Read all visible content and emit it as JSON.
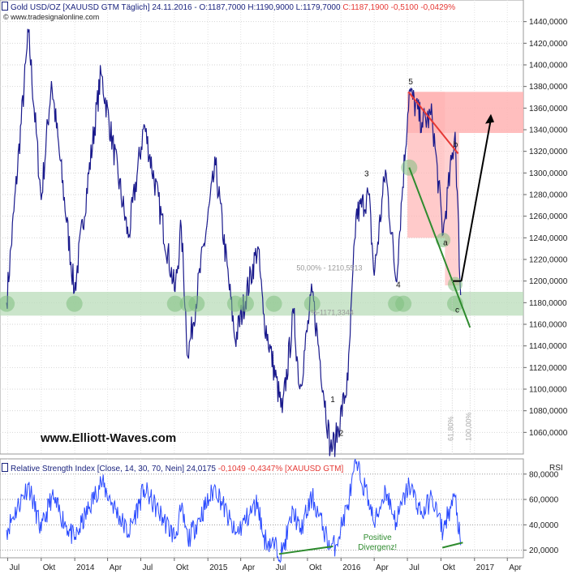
{
  "header": {
    "symbol": "Gold USD/OZ [XAUUSD GTM  Täglich]",
    "quote": "24.11.2016 - O:1187,7000 H:1190,9000 L:1179,7000",
    "change": "C:1187,1900 -0,5100 -0,0429%",
    "website": "© www.tradesignalonline.com"
  },
  "watermark": "www.Elliott-Waves.com",
  "colors": {
    "price_line": "#1a1a8c",
    "rsi_line": "#2b4bff",
    "support_zone": "#b9dcb9",
    "target_zone": "#ffb3b3",
    "trend_red": "#e53935",
    "trend_green": "#2e8b2e",
    "header_text": "#1a237e"
  },
  "chart_data": [
    {
      "type": "line",
      "ylim": [
        1040,
        1460
      ],
      "y_ticks": [
        "1440,0000",
        "1420,0000",
        "1400,0000",
        "1380,0000",
        "1360,0000",
        "1340,0000",
        "1320,0000",
        "1300,0000",
        "1280,0000",
        "1260,0000",
        "1240,0000",
        "1220,0000",
        "1200,0000",
        "1180,0000",
        "1160,0000",
        "1140,0000",
        "1120,0000",
        "1100,0000",
        "1080,0000",
        "1060,0000"
      ],
      "x_ticks": [
        "Jul",
        "Okt",
        "2014",
        "Apr",
        "Jul",
        "Okt",
        "2015",
        "Apr",
        "Jul",
        "Okt",
        "2016",
        "Apr",
        "Jul",
        "Okt",
        "2017",
        "Apr"
      ],
      "series": [
        {
          "x": [
            "2013-06-28",
            "2013-08-27",
            "2013-10-01",
            "2013-10-29",
            "2013-12-31",
            "2014-03-14",
            "2014-05-28",
            "2014-07-10",
            "2014-10-03",
            "2014-10-20",
            "2014-11-07",
            "2015-01-22",
            "2015-03-17",
            "2015-05-18",
            "2015-06-02",
            "2015-07-24",
            "2015-08-24",
            "2015-09-10",
            "2015-10-14",
            "2015-12-03",
            "2015-12-17",
            "2016-01-20",
            "2016-02-11",
            "2016-03-17",
            "2016-04-01",
            "2016-05-02",
            "2016-05-31",
            "2016-07-06",
            "2016-08-10",
            "2016-09-07",
            "2016-10-07",
            "2016-10-14",
            "2016-11-09",
            "2016-11-24"
          ],
          "values": [
            1180,
            1430,
            1275,
            1385,
            1190,
            1392,
            1240,
            1345,
            1190,
            1250,
            1130,
            1307,
            1145,
            1232,
            1170,
            1078,
            1170,
            1100,
            1190,
            1045,
            1052,
            1108,
            1260,
            1280,
            1205,
            1303,
            1200,
            1376,
            1347,
            1352,
            1243,
            1265,
            1338,
            1187
          ]
        }
      ],
      "levels": {
        "fib_50": "50,00% - 1210,5513",
        "fib_618_partial": "%-1171,3344",
        "vert_618": "61,80%",
        "vert_100": "100,00%"
      },
      "support_zone": [
        1168,
        1190
      ],
      "target_zone": [
        1337,
        1375
      ],
      "wave_labels": [
        {
          "label": "1",
          "date": "2015-12-03",
          "value": 1088
        },
        {
          "label": "2",
          "date": "2015-12-26",
          "value": 1057
        },
        {
          "label": "3",
          "date": "2016-03-05",
          "value": 1297
        },
        {
          "label": "4",
          "date": "2016-05-31",
          "value": 1194
        },
        {
          "label": "5",
          "date": "2016-07-04",
          "value": 1382
        },
        {
          "label": "a",
          "date": "2016-10-07",
          "value": 1233
        },
        {
          "label": "b",
          "date": "2016-11-04",
          "value": 1324
        },
        {
          "label": "c",
          "date": "2016-11-09",
          "value": 1171
        }
      ]
    },
    {
      "type": "line",
      "title": "Relative Strength Index [Close, 14, 30, 70, Nein]",
      "reading": "24,0175",
      "change": "-0,1049 -0,4347% [XAUUSD GTM]",
      "label": "RSI",
      "ylim": [
        14,
        92
      ],
      "y_ticks": [
        "80,0000",
        "60,0000",
        "40,0000",
        "20,0000"
      ],
      "series": [
        {
          "x": [
            "2013-06-28",
            "2013-08-27",
            "2013-10-01",
            "2013-10-29",
            "2013-12-31",
            "2014-03-14",
            "2014-05-28",
            "2014-07-10",
            "2014-10-03",
            "2014-10-20",
            "2014-11-07",
            "2015-01-22",
            "2015-03-17",
            "2015-05-18",
            "2015-06-02",
            "2015-07-24",
            "2015-08-24",
            "2015-09-10",
            "2015-10-14",
            "2015-12-03",
            "2015-12-17",
            "2016-01-20",
            "2016-02-11",
            "2016-03-17",
            "2016-04-01",
            "2016-05-02",
            "2016-05-31",
            "2016-07-06",
            "2016-08-10",
            "2016-09-07",
            "2016-10-07",
            "2016-10-14",
            "2016-11-09",
            "2016-11-24"
          ],
          "values": [
            36,
            72,
            35,
            62,
            28,
            74,
            33,
            68,
            30,
            52,
            28,
            70,
            32,
            58,
            30,
            18,
            52,
            34,
            62,
            22,
            24,
            56,
            88,
            60,
            40,
            68,
            42,
            72,
            48,
            62,
            34,
            44,
            62,
            24
          ]
        }
      ],
      "annotation": "Positive Divergenz!"
    }
  ]
}
